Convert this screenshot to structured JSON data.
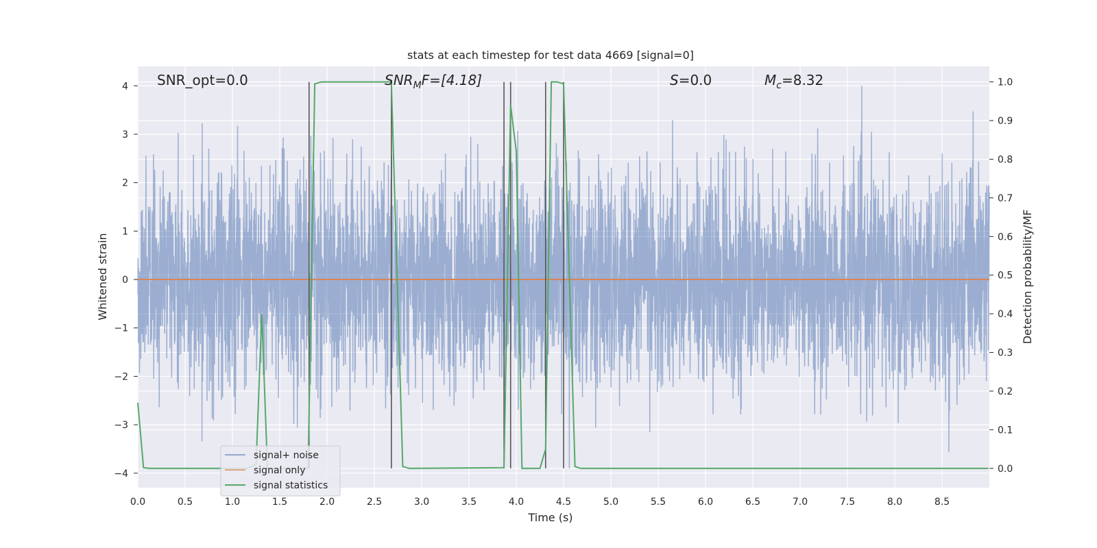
{
  "chart_data": {
    "type": "line",
    "title": "stats at each timestep for test data 4669 [signal=0]",
    "xlabel": "Time (s)",
    "ylabel": "Whitened strain",
    "ylabel_right": "Detection probability/MF",
    "xlim": [
      0.0,
      9.0
    ],
    "ylim": [
      -4.3,
      4.4
    ],
    "ylim_right": [
      -0.05,
      1.04
    ],
    "x_ticks": [
      0.0,
      0.5,
      1.0,
      1.5,
      2.0,
      2.5,
      3.0,
      3.5,
      4.0,
      4.5,
      5.0,
      5.5,
      6.0,
      6.5,
      7.0,
      7.5,
      8.0,
      8.5
    ],
    "y_ticks": [
      -4,
      -3,
      -2,
      -1,
      0,
      1,
      2,
      3,
      4
    ],
    "y_ticks_right": [
      0.0,
      0.1,
      0.2,
      0.3,
      0.4,
      0.5,
      0.6,
      0.7,
      0.8,
      0.9,
      1.0
    ],
    "grid": true,
    "legend_position": "lower-left",
    "colors": {
      "background": "#eaeaf2",
      "grid": "#ffffff",
      "noise": "#4c72b0",
      "signal": "#dd8452",
      "stats": "#55a868",
      "vline": "#555555"
    },
    "annotations": {
      "snr_opt": "SNR_opt=0.0",
      "snr_mf_main": "SNR",
      "snr_mf_sub": "M",
      "snr_mf_rest": "F=[4.18]",
      "s_var": "S",
      "s_rest": "=0.0",
      "mc_var": "M",
      "mc_sub": "c",
      "mc_rest": "=8.32"
    },
    "series": [
      {
        "name": "signal+ noise",
        "description_values": "whitened noise, amplitude mostly within ±2.5, peaks near ±3.9",
        "x_range": [
          0.0,
          9.0
        ],
        "y_envelope": [
          -3.9,
          4.0
        ]
      },
      {
        "name": "signal only",
        "x": [
          0.0,
          9.0
        ],
        "y": [
          0.0,
          0.0
        ]
      },
      {
        "name": "signal statistics",
        "x": [
          0.0,
          0.06,
          0.12,
          1.15,
          1.25,
          1.31,
          1.37,
          1.43,
          1.8,
          1.87,
          1.94,
          2.6,
          2.68,
          2.74,
          2.8,
          2.87,
          3.87,
          3.94,
          4.0,
          4.06,
          4.12,
          4.25,
          4.31,
          4.37,
          4.43,
          4.5,
          4.56,
          4.62,
          4.68,
          8.99
        ],
        "y": [
          0.17,
          0.002,
          0.0,
          0.0,
          0.01,
          0.4,
          0.0,
          0.0,
          0.0,
          0.995,
          1.0,
          1.0,
          1.0,
          0.5,
          0.005,
          0.0,
          0.002,
          0.94,
          0.82,
          0.0,
          0.0,
          0.0,
          0.05,
          1.0,
          1.0,
          0.995,
          0.5,
          0.005,
          0.0,
          0.0
        ]
      }
    ],
    "vertical_lines": [
      1.81,
      2.68,
      3.87,
      3.94,
      4.31,
      4.5
    ],
    "legend": [
      "signal+ noise",
      "signal only",
      "signal statistics"
    ]
  }
}
